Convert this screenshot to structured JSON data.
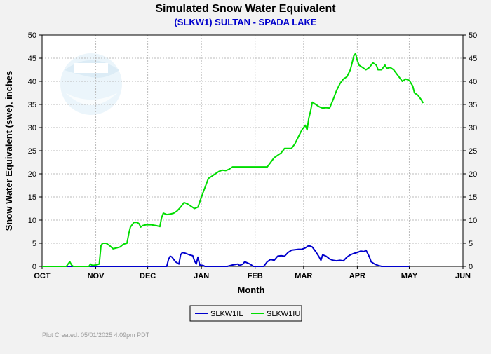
{
  "chart_data": {
    "type": "line",
    "title": "Simulated Snow Water Equivalent",
    "subtitle": "(SLKW1) SULTAN - SPADA LAKE",
    "xlabel": "Month",
    "ylabel": "Snow Water Equivalent (swe),  inches",
    "footer": "Plot Created: 05/01/2025 4:09pm PDT",
    "x_unit": "days since Oct 1",
    "xlim": [
      0,
      243
    ],
    "ylim": [
      0,
      50
    ],
    "y_ticks": [
      0,
      5,
      10,
      15,
      20,
      25,
      30,
      35,
      40,
      45,
      50
    ],
    "x_ticks": [
      {
        "label": "OCT",
        "day": 0
      },
      {
        "label": "NOV",
        "day": 31
      },
      {
        "label": "DEC",
        "day": 61
      },
      {
        "label": "JAN",
        "day": 92
      },
      {
        "label": "FEB",
        "day": 123
      },
      {
        "label": "MAR",
        "day": 151
      },
      {
        "label": "APR",
        "day": 182
      },
      {
        "label": "MAY",
        "day": 212
      },
      {
        "label": "JUN",
        "day": 243
      }
    ],
    "grid": true,
    "legend_position": "bottom-center",
    "colors": {
      "background": "#f2f2f2",
      "plot_bg": "#ffffff",
      "grid": "#bbbbbb",
      "title": "#000000",
      "subtitle": "#0000cc",
      "footer": "#999999"
    },
    "series": [
      {
        "name": "SLKW1IL",
        "color": "#0000cc",
        "points": [
          [
            0,
            0
          ],
          [
            60,
            0
          ],
          [
            72,
            0
          ],
          [
            73,
            1.5
          ],
          [
            74,
            2.2
          ],
          [
            75,
            2
          ],
          [
            76,
            1.5
          ],
          [
            77,
            1
          ],
          [
            79,
            0.5
          ],
          [
            80,
            2.5
          ],
          [
            81,
            3
          ],
          [
            83,
            2.8
          ],
          [
            85,
            2.5
          ],
          [
            87,
            2.3
          ],
          [
            88,
            1.2
          ],
          [
            89,
            0.5
          ],
          [
            90,
            2
          ],
          [
            91,
            0.3
          ],
          [
            93,
            0.2
          ],
          [
            94,
            0
          ],
          [
            100,
            0
          ],
          [
            107,
            0
          ],
          [
            110,
            0.3
          ],
          [
            113,
            0.5
          ],
          [
            114,
            0.2
          ],
          [
            116,
            0.5
          ],
          [
            117,
            1
          ],
          [
            120,
            0.5
          ],
          [
            122,
            0
          ],
          [
            128,
            0
          ],
          [
            130,
            1
          ],
          [
            132,
            1.5
          ],
          [
            134,
            1.3
          ],
          [
            136,
            2.2
          ],
          [
            138,
            2.3
          ],
          [
            140,
            2.2
          ],
          [
            142,
            3
          ],
          [
            144,
            3.5
          ],
          [
            148,
            3.7
          ],
          [
            150,
            3.7
          ],
          [
            152,
            4
          ],
          [
            154,
            4.5
          ],
          [
            156,
            4.2
          ],
          [
            158,
            3.2
          ],
          [
            160,
            2
          ],
          [
            161,
            1.3
          ],
          [
            162,
            2.5
          ],
          [
            164,
            2.2
          ],
          [
            166,
            1.6
          ],
          [
            168,
            1.3
          ],
          [
            170,
            1.2
          ],
          [
            172,
            1.3
          ],
          [
            174,
            1.2
          ],
          [
            176,
            2
          ],
          [
            178,
            2.5
          ],
          [
            180,
            2.8
          ],
          [
            182,
            3
          ],
          [
            184,
            3.3
          ],
          [
            186,
            3.2
          ],
          [
            187,
            3.5
          ],
          [
            188,
            2.8
          ],
          [
            189,
            2
          ],
          [
            190,
            1
          ],
          [
            192,
            0.5
          ],
          [
            194,
            0.2
          ],
          [
            196,
            0
          ],
          [
            205,
            0
          ],
          [
            212,
            0
          ]
        ]
      },
      {
        "name": "SLKW1IU",
        "color": "#00dd00",
        "points": [
          [
            0,
            0
          ],
          [
            14,
            0
          ],
          [
            15,
            0.5
          ],
          [
            16,
            1
          ],
          [
            17,
            0.3
          ],
          [
            18,
            0
          ],
          [
            27,
            0
          ],
          [
            28,
            0.5
          ],
          [
            29,
            0.2
          ],
          [
            31,
            0.3
          ],
          [
            32,
            0.4
          ],
          [
            33,
            0.5
          ],
          [
            34,
            4.5
          ],
          [
            35,
            5
          ],
          [
            37,
            5
          ],
          [
            39,
            4.5
          ],
          [
            41,
            3.8
          ],
          [
            43,
            4
          ],
          [
            45,
            4.2
          ],
          [
            47,
            4.8
          ],
          [
            49,
            5
          ],
          [
            50,
            7
          ],
          [
            51,
            8.5
          ],
          [
            53,
            9.5
          ],
          [
            55,
            9.5
          ],
          [
            56,
            9.2
          ],
          [
            57,
            8.5
          ],
          [
            58,
            8.8
          ],
          [
            60,
            9
          ],
          [
            63,
            9
          ],
          [
            66,
            8.8
          ],
          [
            68,
            8.6
          ],
          [
            69,
            10.5
          ],
          [
            70,
            11.5
          ],
          [
            72,
            11.2
          ],
          [
            74,
            11.3
          ],
          [
            76,
            11.5
          ],
          [
            78,
            12
          ],
          [
            80,
            12.8
          ],
          [
            82,
            13.8
          ],
          [
            84,
            13.5
          ],
          [
            86,
            13
          ],
          [
            88,
            12.5
          ],
          [
            90,
            12.8
          ],
          [
            92,
            15
          ],
          [
            93,
            16
          ],
          [
            94,
            17
          ],
          [
            96,
            19
          ],
          [
            98,
            19.5
          ],
          [
            100,
            20
          ],
          [
            102,
            20.5
          ],
          [
            104,
            20.8
          ],
          [
            106,
            20.7
          ],
          [
            108,
            21
          ],
          [
            110,
            21.5
          ],
          [
            112,
            21.5
          ],
          [
            114,
            21.5
          ],
          [
            120,
            21.5
          ],
          [
            126,
            21.5
          ],
          [
            129,
            21.5
          ],
          [
            130,
            21.5
          ],
          [
            132,
            22.5
          ],
          [
            134,
            23.5
          ],
          [
            136,
            24
          ],
          [
            138,
            24.5
          ],
          [
            140,
            25.5
          ],
          [
            142,
            25.5
          ],
          [
            144,
            25.5
          ],
          [
            146,
            26.5
          ],
          [
            148,
            28
          ],
          [
            150,
            29.5
          ],
          [
            152,
            30.5
          ],
          [
            153,
            29.5
          ],
          [
            154,
            32
          ],
          [
            155,
            33.5
          ],
          [
            156,
            35.5
          ],
          [
            158,
            35
          ],
          [
            160,
            34.5
          ],
          [
            162,
            34.2
          ],
          [
            164,
            34.3
          ],
          [
            166,
            34.2
          ],
          [
            168,
            36
          ],
          [
            170,
            38
          ],
          [
            172,
            39.5
          ],
          [
            174,
            40.5
          ],
          [
            176,
            41
          ],
          [
            178,
            42.5
          ],
          [
            179,
            44
          ],
          [
            180,
            45.5
          ],
          [
            181,
            46
          ],
          [
            182,
            44.5
          ],
          [
            183,
            43.5
          ],
          [
            185,
            43
          ],
          [
            187,
            42.5
          ],
          [
            189,
            43
          ],
          [
            191,
            44
          ],
          [
            193,
            43.5
          ],
          [
            194,
            42.5
          ],
          [
            196,
            42.5
          ],
          [
            198,
            43.5
          ],
          [
            199,
            42.8
          ],
          [
            201,
            43
          ],
          [
            203,
            42.5
          ],
          [
            205,
            41.5
          ],
          [
            207,
            40.5
          ],
          [
            208,
            40
          ],
          [
            210,
            40.5
          ],
          [
            212,
            40.2
          ],
          [
            214,
            39
          ],
          [
            215,
            37.5
          ],
          [
            217,
            37
          ],
          [
            219,
            36
          ],
          [
            220,
            35.3
          ]
        ]
      }
    ]
  }
}
